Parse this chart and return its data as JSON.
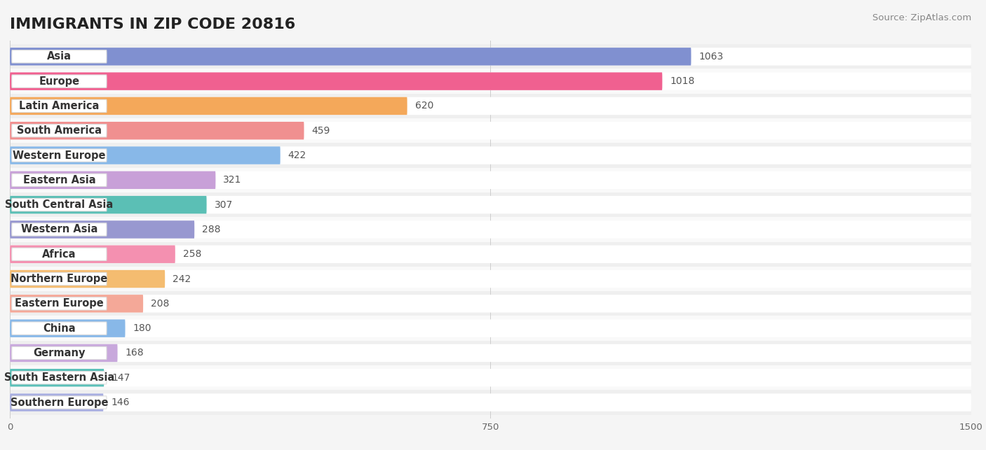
{
  "title": "IMMIGRANTS IN ZIP CODE 20816",
  "source_text": "Source: ZipAtlas.com",
  "categories": [
    "Asia",
    "Europe",
    "Latin America",
    "South America",
    "Western Europe",
    "Eastern Asia",
    "South Central Asia",
    "Western Asia",
    "Africa",
    "Northern Europe",
    "Eastern Europe",
    "China",
    "Germany",
    "South Eastern Asia",
    "Southern Europe"
  ],
  "values": [
    1063,
    1018,
    620,
    459,
    422,
    321,
    307,
    288,
    258,
    242,
    208,
    180,
    168,
    147,
    146
  ],
  "bar_colors": [
    "#8090d0",
    "#f06090",
    "#f4a85a",
    "#f09090",
    "#88b8e8",
    "#c8a0d8",
    "#5bbfb5",
    "#9898d0",
    "#f490b0",
    "#f4bc70",
    "#f4a898",
    "#88b8e8",
    "#c8a8dc",
    "#5bc0b8",
    "#a8aee0"
  ],
  "background_color": "#f5f5f5",
  "row_bg_colors": [
    "#eeeeee",
    "#f8f8f8"
  ],
  "xlim": [
    0,
    1500
  ],
  "xticks": [
    0,
    750,
    1500
  ],
  "title_fontsize": 16,
  "label_fontsize": 10.5,
  "value_fontsize": 10,
  "source_fontsize": 9.5
}
